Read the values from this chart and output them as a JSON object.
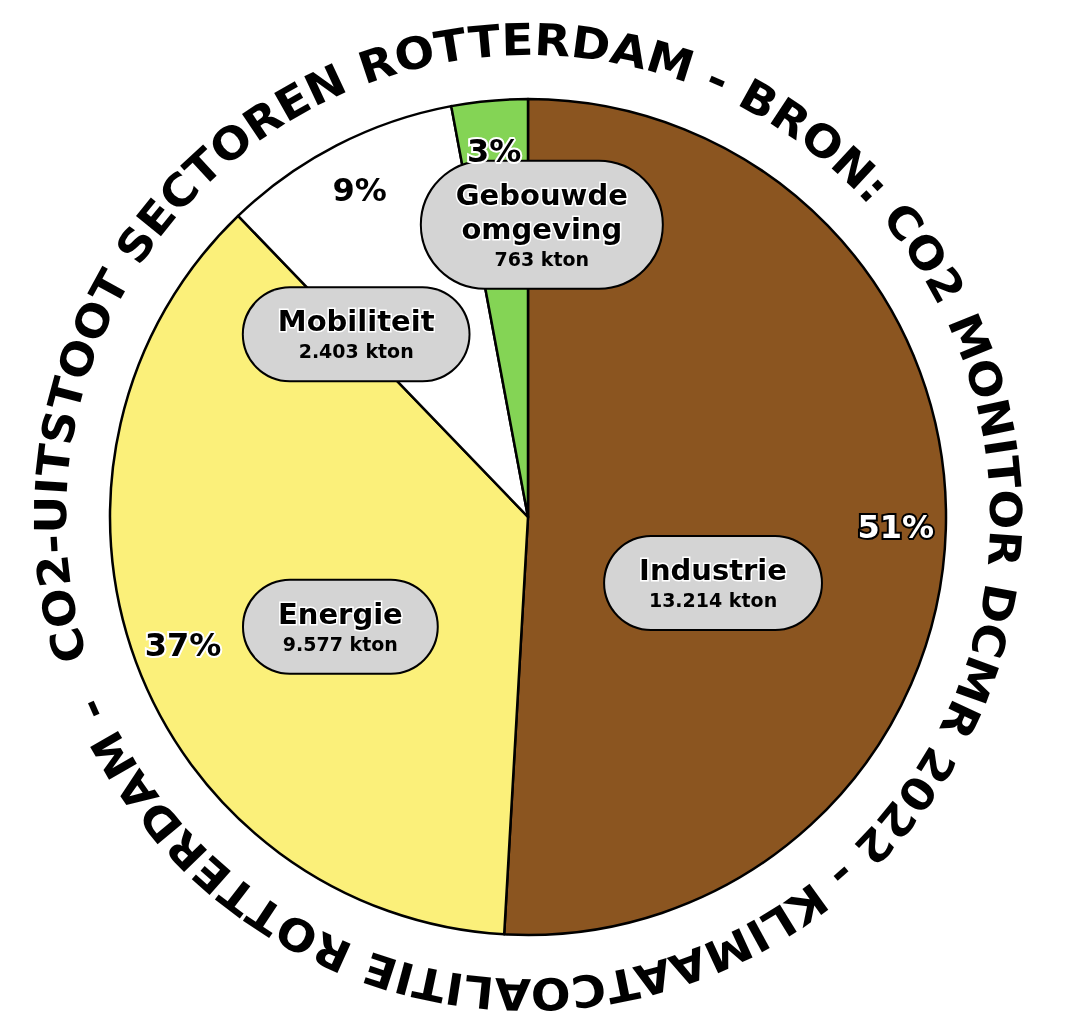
{
  "chart_data": {
    "type": "pie",
    "title": "CO2-UITSTOOT SECTOREN ROTTERDAM - BRON: CO2 MONITOR DCMR 2022 - KLIMAATCOALITIE ROTTERDAM -",
    "categories": [
      "Industrie",
      "Energie",
      "Mobiliteit",
      "Gebouwde omgeving"
    ],
    "values": [
      13214,
      9577,
      2403,
      763
    ],
    "value_labels": [
      "13.214 kton",
      "9.577 kton",
      "2.403 kton",
      "763 kton"
    ],
    "colors": [
      "#8b5520",
      "#fbf07a",
      "#ffffff",
      "#84d455"
    ],
    "annotations": [
      "51%",
      "37%",
      "9%",
      "3%"
    ],
    "legend": false
  }
}
